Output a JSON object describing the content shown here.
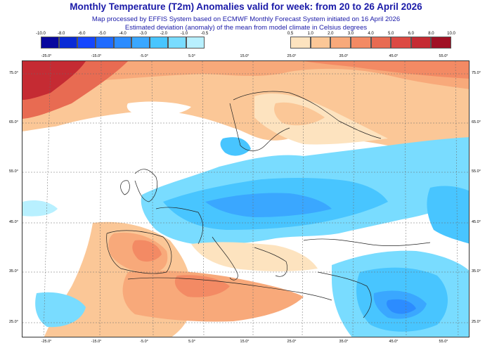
{
  "header": {
    "title": "Monthly Temperature (T2m) Anomalies valid for week: from 20 to 26 April 2026",
    "line1": "Map processed by EFFIS System based on ECMWF Monthly Forecast System initiated on 16 April 2026",
    "line2": "Estimated deviation (anomaly) of the mean from model climate in Celsius degrees"
  },
  "legend": {
    "cold": {
      "labels": [
        "-10.0",
        "-8.0",
        "-6.0",
        "-5.0",
        "-4.0",
        "-3.0",
        "-2.0",
        "-1.0",
        "-0.5"
      ],
      "colors": [
        "#08089e",
        "#0a2bd6",
        "#1546ff",
        "#1f6bff",
        "#2c8cff",
        "#3aa7ff",
        "#48c5ff",
        "#79dcff",
        "#b8f0ff"
      ]
    },
    "warm": {
      "labels": [
        "0.5",
        "1.0",
        "2.0",
        "3.0",
        "4.0",
        "5.0",
        "6.0",
        "8.0",
        "10.0"
      ],
      "colors": [
        "#fde3bf",
        "#fbc797",
        "#f8a97a",
        "#f38a64",
        "#e86b52",
        "#dc4a43",
        "#c52b33",
        "#a01024"
      ]
    }
  },
  "axes": {
    "top_lon": [
      "-25.0°",
      "-15.0°",
      "-5.0°",
      "5.0°",
      "15.0°",
      "25.0°",
      "35.0°",
      "45.0°",
      "55.0°"
    ],
    "bottom_lon": [
      "-25.0°",
      "-15.0°",
      "-5.0°",
      "5.0°",
      "15.0°",
      "25.0°",
      "35.0°",
      "45.0°",
      "55.0°"
    ],
    "left_lat": [
      "75.0°",
      "65.0°",
      "55.0°",
      "45.0°",
      "35.0°",
      "25.0°"
    ],
    "right_lat": [
      "75.0°",
      "65.0°",
      "55.0°",
      "45.0°",
      "35.0°",
      "25.0°"
    ]
  }
}
